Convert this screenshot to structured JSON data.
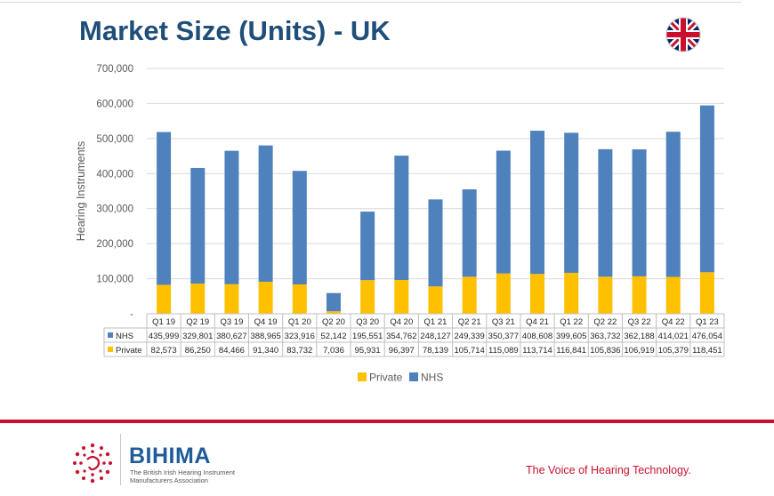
{
  "slide": {
    "title": "Market Size (Units) - UK",
    "tagline": "The Voice of Hearing Technology.",
    "logo_name": "BIHIMA",
    "logo_sub_1": "The British Irish Hearing Instrument",
    "logo_sub_2": "Manufacturers Association",
    "flag_icon": "uk-flag-icon",
    "colors": {
      "title": "#1f4e79",
      "accent_red": "#c8102e",
      "nhs": "#4f81bd",
      "private": "#ffc000"
    }
  },
  "chart_data": {
    "type": "bar",
    "stacked": true,
    "categories": [
      "Q1 19",
      "Q2 19",
      "Q3 19",
      "Q4 19",
      "Q1 20",
      "Q2 20",
      "Q3 20",
      "Q4 20",
      "Q1 21",
      "Q2 21",
      "Q3 21",
      "Q4 21",
      "Q1 22",
      "Q2 22",
      "Q3 22",
      "Q4 22",
      "Q1 23"
    ],
    "series": [
      {
        "name": "Private",
        "color": "#ffc000",
        "values": [
          82573,
          86250,
          84466,
          91340,
          83732,
          7036,
          95931,
          96397,
          78139,
          105714,
          115089,
          113714,
          116841,
          105836,
          106919,
          105379,
          118451
        ],
        "labels": [
          "82,573",
          "86,250",
          "84,466",
          "91,340",
          "83,732",
          "7,036",
          "95,931",
          "96,397",
          "78,139",
          "105,714",
          "115,089",
          "113,714",
          "116,841",
          "105,836",
          "106,919",
          "105,379",
          "118,451"
        ]
      },
      {
        "name": "NHS",
        "color": "#4f81bd",
        "values": [
          435999,
          329801,
          380627,
          388965,
          323916,
          52142,
          195551,
          354762,
          248127,
          249339,
          350377,
          408608,
          399605,
          363732,
          362188,
          414021,
          476054
        ],
        "labels": [
          "435,999",
          "329,801",
          "380,627",
          "388,965",
          "323,916",
          "52,142",
          "195,551",
          "354,762",
          "248,127",
          "249,339",
          "350,377",
          "408,608",
          "399,605",
          "363,732",
          "362,188",
          "414,021",
          "476,054"
        ]
      }
    ],
    "table_order": [
      "NHS",
      "Private"
    ],
    "legend_order": [
      "Private",
      "NHS"
    ],
    "ylabel": "Hearing Instruments",
    "ylim": [
      0,
      700000
    ],
    "yticks": [
      "-",
      "100,000",
      "200,000",
      "300,000",
      "400,000",
      "500,000",
      "600,000",
      "700,000"
    ],
    "grid": true,
    "legend_position": "bottom"
  }
}
